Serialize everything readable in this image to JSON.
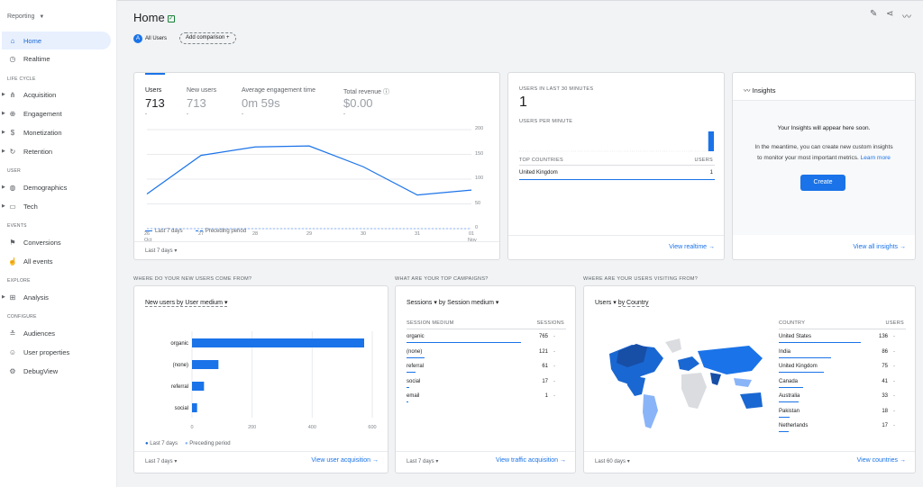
{
  "sidebar": {
    "property": "Reporting",
    "items": {
      "home": "Home",
      "realtime": "Realtime",
      "acquisition": "Acquisition",
      "engagement": "Engagement",
      "monetization": "Monetization",
      "retention": "Retention",
      "demographics": "Demographics",
      "tech": "Tech",
      "conversions": "Conversions",
      "all_events": "All events",
      "analysis": "Analysis",
      "audiences": "Audiences",
      "user_properties": "User properties",
      "debugview": "DebugView"
    },
    "sections": {
      "life_cycle": "LIFE CYCLE",
      "user": "USER",
      "events": "EVENTS",
      "explore": "EXPLORE",
      "configure": "CONFIGURE"
    }
  },
  "header": {
    "title": "Home",
    "segment_avatar": "A",
    "segment": "All Users",
    "add_comparison": "Add comparison",
    "add_icon": "+"
  },
  "overview": {
    "metrics": [
      {
        "label": "Users",
        "value": "713",
        "sub": "-"
      },
      {
        "label": "New users",
        "value": "713",
        "sub": "-"
      },
      {
        "label": "Average engagement time",
        "value": "0m 59s",
        "sub": "-"
      },
      {
        "label": "Total revenue",
        "value": "$0.00",
        "sub": "-"
      }
    ],
    "yticks": [
      "200",
      "150",
      "100",
      "50",
      "0"
    ],
    "xticks": [
      "26",
      "27",
      "28",
      "29",
      "30",
      "31",
      "01"
    ],
    "xmonth_start": "Oct",
    "xmonth_end": "Nov",
    "legend_current": "Last 7 days",
    "legend_previous": "Preceding period",
    "date_range": "Last 7 days"
  },
  "realtime": {
    "users_label": "USERS IN LAST 30 MINUTES",
    "users_value": "1",
    "per_minute_label": "USERS PER MINUTE",
    "top_countries": "TOP COUNTRIES",
    "users_col": "USERS",
    "country": "United Kingdom",
    "country_users": "1",
    "view_link": "View realtime"
  },
  "insights": {
    "title": "Insights",
    "heading": "Your Insights will appear here soon.",
    "body1": "In the meantime, you can create new custom insights",
    "body2": "to monitor your most important metrics.",
    "learn": "Learn more",
    "create": "Create",
    "view_link": "View all insights"
  },
  "acq": {
    "question": "WHERE DO YOUR NEW USERS COME FROM?",
    "selector_metric": "New users",
    "selector_by": "by User medium",
    "categories": [
      "organic",
      "(none)",
      "referral",
      "social"
    ],
    "xticks": [
      "0",
      "200",
      "400",
      "600"
    ],
    "legend_current": "Last 7 days",
    "legend_previous": "Preceding period",
    "date_range": "Last 7 days",
    "view_link": "View user acquisition"
  },
  "campaigns": {
    "question": "WHAT ARE YOUR TOP CAMPAIGNS?",
    "selector_metric": "Sessions",
    "selector_by": "by Session medium",
    "col1": "SESSION MEDIUM",
    "col2": "SESSIONS",
    "rows": [
      {
        "name": "organic",
        "value": "765",
        "prev": "-"
      },
      {
        "name": "(none)",
        "value": "121",
        "prev": "-"
      },
      {
        "name": "referral",
        "value": "61",
        "prev": "-"
      },
      {
        "name": "social",
        "value": "17",
        "prev": "-"
      },
      {
        "name": "email",
        "value": "1",
        "prev": "-"
      }
    ],
    "date_range": "Last 7 days",
    "view_link": "View traffic acquisition"
  },
  "geo": {
    "question": "WHERE ARE YOUR USERS VISITING FROM?",
    "selector_metric": "Users",
    "selector_by": "by Country",
    "col1": "COUNTRY",
    "col2": "USERS",
    "rows": [
      {
        "name": "United States",
        "value": "136",
        "prev": "-"
      },
      {
        "name": "India",
        "value": "86",
        "prev": "-"
      },
      {
        "name": "United Kingdom",
        "value": "75",
        "prev": "-"
      },
      {
        "name": "Canada",
        "value": "41",
        "prev": "-"
      },
      {
        "name": "Australia",
        "value": "33",
        "prev": "-"
      },
      {
        "name": "Pakistan",
        "value": "18",
        "prev": "-"
      },
      {
        "name": "Netherlands",
        "value": "17",
        "prev": "-"
      }
    ],
    "date_range": "Last 60 days",
    "view_link": "View countries"
  },
  "chart_data": [
    {
      "type": "line",
      "x": [
        "26 Oct",
        "27",
        "28",
        "29",
        "30",
        "31",
        "01 Nov"
      ],
      "ylim": [
        0,
        200
      ],
      "series": [
        {
          "name": "Last 7 days",
          "values": [
            70,
            148,
            165,
            167,
            125,
            68,
            78
          ]
        }
      ]
    },
    {
      "type": "bar",
      "categories": [
        "organic",
        "(none)",
        "referral",
        "social"
      ],
      "xlim": [
        0,
        600
      ],
      "series": [
        {
          "name": "Last 7 days",
          "values": [
            573,
            88,
            40,
            17
          ]
        }
      ]
    },
    {
      "type": "bar",
      "x": "minutes",
      "values": [
        0,
        0,
        0,
        0,
        0,
        0,
        0,
        0,
        0,
        0,
        0,
        0,
        0,
        0,
        0,
        0,
        0,
        0,
        0,
        0,
        0,
        0,
        0,
        0,
        0,
        0,
        0,
        0,
        0,
        1
      ]
    }
  ],
  "colors": {
    "accent": "#1a73e8",
    "dark": "#1967d2",
    "light": "#8ab4f8"
  }
}
